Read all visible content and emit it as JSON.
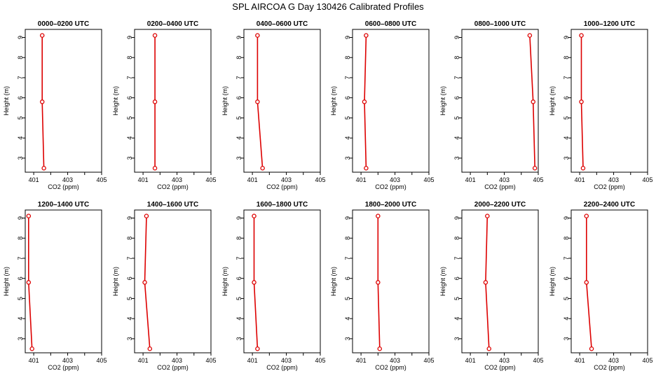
{
  "chart_data": {
    "type": "line",
    "title": "SPL AIRCOA G  Day 130426  Calibrated Profiles",
    "xlabel": "CO2 (ppm)",
    "ylabel": "Height (m)",
    "xlim": [
      400.5,
      405.0
    ],
    "ylim": [
      2.3,
      9.4
    ],
    "xticks": [
      401,
      402,
      403,
      404,
      405
    ],
    "xtick_labels": [
      "401",
      "",
      "403",
      "",
      "405"
    ],
    "yticks": [
      3,
      4,
      5,
      6,
      7,
      8,
      9
    ],
    "yticklabels": [
      "3",
      "4",
      "5",
      "6",
      "7",
      "8",
      "9"
    ],
    "series_color": "#dd0000",
    "heights": [
      9.1,
      5.8,
      2.5
    ],
    "panels": [
      {
        "title": "0000–0200 UTC",
        "co2": [
          401.5,
          401.5,
          401.6
        ]
      },
      {
        "title": "0200–0400 UTC",
        "co2": [
          401.7,
          401.7,
          401.7
        ]
      },
      {
        "title": "0400–0600 UTC",
        "co2": [
          401.3,
          401.3,
          401.6
        ]
      },
      {
        "title": "0600–0800 UTC",
        "co2": [
          401.3,
          401.2,
          401.3
        ]
      },
      {
        "title": "0800–1000 UTC",
        "co2": [
          404.5,
          404.7,
          404.8
        ]
      },
      {
        "title": "1000–1200 UTC",
        "co2": [
          401.1,
          401.1,
          401.2
        ]
      },
      {
        "title": "1200–1400 UTC",
        "co2": [
          400.7,
          400.7,
          400.9
        ]
      },
      {
        "title": "1400–1600 UTC",
        "co2": [
          401.2,
          401.1,
          401.4
        ]
      },
      {
        "title": "1600–1800 UTC",
        "co2": [
          401.1,
          401.1,
          401.3
        ]
      },
      {
        "title": "1800–2000 UTC",
        "co2": [
          402.0,
          402.0,
          402.1
        ]
      },
      {
        "title": "2000–2200 UTC",
        "co2": [
          402.0,
          401.9,
          402.1
        ]
      },
      {
        "title": "2200–2400 UTC",
        "co2": [
          401.4,
          401.4,
          401.7
        ]
      }
    ]
  }
}
